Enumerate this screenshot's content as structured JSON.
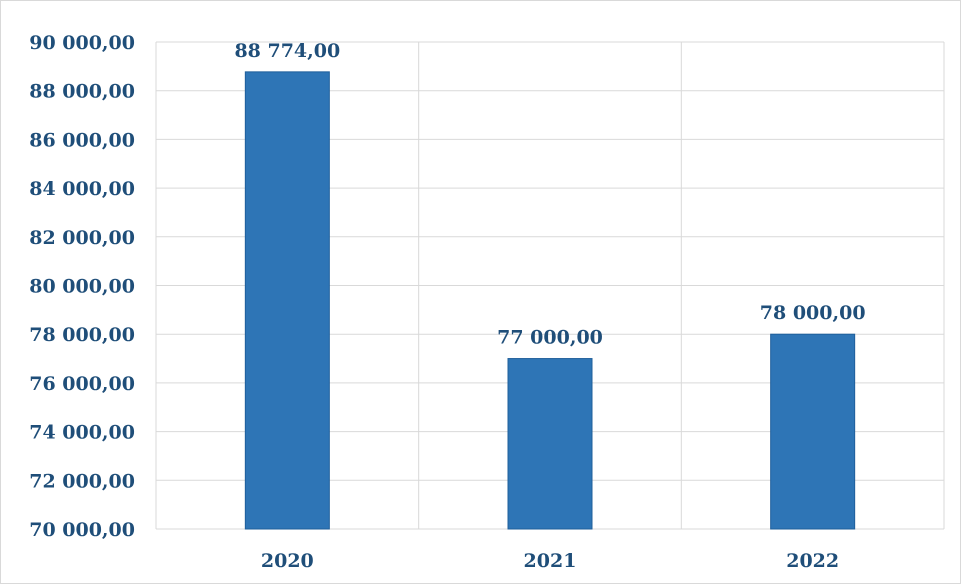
{
  "chart_data": {
    "type": "bar",
    "categories": [
      "2020",
      "2021",
      "2022"
    ],
    "values": [
      88774.0,
      77000.0,
      78000.0
    ],
    "data_labels": [
      "88 774,00",
      "77 000,00",
      "78 000,00"
    ],
    "ylim": [
      70000,
      90000
    ],
    "y_ticks": [
      70000,
      72000,
      74000,
      76000,
      78000,
      80000,
      82000,
      84000,
      86000,
      88000,
      90000
    ],
    "y_tick_labels": [
      "70 000,00",
      "72 000,00",
      "74 000,00",
      "76 000,00",
      "78 000,00",
      "80 000,00",
      "82 000,00",
      "84 000,00",
      "86 000,00",
      "88 000,00",
      "90 000,00"
    ],
    "title": "",
    "xlabel": "",
    "ylabel": "",
    "grid": true,
    "legend": "none",
    "colors": {
      "bar_fill": "#2e75b6",
      "bar_stroke": "#1f5f9b",
      "text": "#1f4e79",
      "grid": "#d9d9d9"
    }
  }
}
